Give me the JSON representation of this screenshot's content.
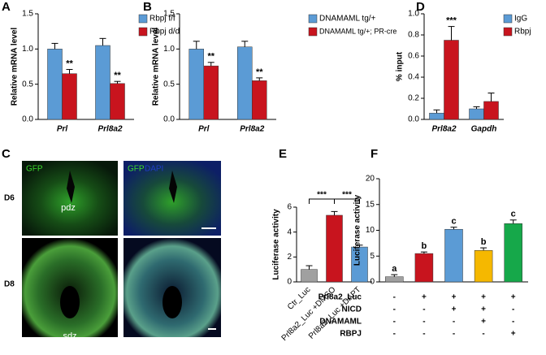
{
  "chart_data": [
    {
      "type": "bar",
      "panel": "A",
      "ylabel": "Relative mRNA level",
      "categories": [
        "Prl",
        "Prl8a2"
      ],
      "series": [
        {
          "name": "Rbpj f/f",
          "color": "#5b9bd5",
          "values": [
            1.0,
            1.05
          ],
          "errors": [
            0.08,
            0.1
          ],
          "annotations": [
            null,
            null
          ]
        },
        {
          "name": "Rbpj d/d",
          "color": "#c8141e",
          "values": [
            0.65,
            0.51
          ],
          "errors": [
            0.06,
            0.03
          ],
          "annotations": [
            "**",
            "**"
          ]
        }
      ],
      "ylim": [
        0,
        1.5
      ],
      "yticks": [
        {
          "value": 0,
          "label": "0.0"
        },
        {
          "value": 0.5,
          "label": "0.5"
        },
        {
          "value": 1,
          "label": "1.0"
        },
        {
          "value": 1.5,
          "label": "1.5"
        }
      ],
      "legend": "upper right"
    },
    {
      "type": "bar",
      "panel": "B",
      "ylabel": "Relative mRNA level",
      "categories": [
        "Prl",
        "Prl8a2"
      ],
      "series": [
        {
          "name": "DNAMAML tg/+",
          "color": "#5b9bd5",
          "values": [
            1.0,
            1.03
          ],
          "errors": [
            0.11,
            0.08
          ],
          "annotations": [
            null,
            null
          ]
        },
        {
          "name": "DNAMAML tg/+; PR-cre",
          "color": "#c8141e",
          "values": [
            0.76,
            0.55
          ],
          "errors": [
            0.05,
            0.04
          ],
          "annotations": [
            "**",
            "**"
          ]
        }
      ],
      "ylim": [
        0,
        1.5
      ],
      "yticks": [
        {
          "value": 0,
          "label": "0.0"
        },
        {
          "value": 0.5,
          "label": "0.5"
        },
        {
          "value": 1,
          "label": "1.0"
        },
        {
          "value": 1.5,
          "label": "1.5"
        }
      ],
      "legend": "upper right"
    },
    {
      "type": "bar",
      "panel": "D",
      "ylabel": "% input",
      "categories": [
        "Prl8a2",
        "Gapdh"
      ],
      "series": [
        {
          "name": "IgG",
          "color": "#5b9bd5",
          "values": [
            0.06,
            0.1
          ],
          "errors": [
            0.03,
            0.02
          ],
          "annotations": [
            null,
            null
          ]
        },
        {
          "name": "Rbpj",
          "color": "#c8141e",
          "values": [
            0.75,
            0.17
          ],
          "errors": [
            0.13,
            0.08
          ],
          "annotations": [
            "***",
            null
          ]
        }
      ],
      "ylim": [
        0,
        1
      ],
      "yticks": [
        {
          "value": 0,
          "label": "0.0"
        },
        {
          "value": 0.2,
          "label": "0.2"
        },
        {
          "value": 0.4,
          "label": "0.4"
        },
        {
          "value": 0.6,
          "label": "0.6"
        },
        {
          "value": 0.8,
          "label": "0.8"
        },
        {
          "value": 1,
          "label": "1.0"
        }
      ],
      "legend": "upper right"
    },
    {
      "type": "bar",
      "panel": "E",
      "ylabel": "Luciferase activity",
      "categories": [
        "Ctr_Luc",
        "Prl8a2_Luc +DMSO",
        "Prl8a2_Luc +DAPT"
      ],
      "values": [
        1.0,
        5.35,
        2.8
      ],
      "errors": [
        0.3,
        0.3,
        0.15
      ],
      "colors": [
        "#a0a0a0",
        "#c8141e",
        "#5b9bd5"
      ],
      "comparisons": [
        {
          "between": [
            0,
            1
          ],
          "label": "***"
        },
        {
          "between": [
            1,
            2
          ],
          "label": "***"
        }
      ],
      "ylim": [
        0,
        6
      ],
      "yticks": [
        0,
        2,
        4,
        6
      ]
    },
    {
      "type": "bar",
      "panel": "F",
      "ylabel": "Luciferase activity",
      "values": [
        1.0,
        5.5,
        10.2,
        6.1,
        11.3
      ],
      "errors": [
        0.4,
        0.3,
        0.4,
        0.5,
        0.7
      ],
      "colors": [
        "#a0a0a0",
        "#c8141e",
        "#5b9bd5",
        "#f5b800",
        "#16a84a"
      ],
      "annotations": [
        "a",
        "b",
        "c",
        "b",
        "c"
      ],
      "condition_table": [
        {
          "label": "Prl8a2_Luc",
          "signs": [
            "-",
            "+",
            "+",
            "+",
            "+"
          ]
        },
        {
          "label": "NICD",
          "signs": [
            "-",
            "-",
            "+",
            "+",
            "-"
          ]
        },
        {
          "label": "DNAMAML",
          "signs": [
            "-",
            "-",
            "-",
            "+",
            "-"
          ]
        },
        {
          "label": "RBPJ",
          "signs": [
            "-",
            "-",
            "-",
            "-",
            "+"
          ]
        }
      ],
      "ylim": [
        0,
        20
      ],
      "yticks": [
        0,
        5,
        10,
        15,
        20
      ]
    }
  ],
  "image_panel": {
    "panel": "C",
    "rows": [
      "D6",
      "D8"
    ],
    "channel_green": "GFP",
    "channel_blue": "DAPI",
    "zones": [
      "pdz",
      "sdz"
    ]
  }
}
